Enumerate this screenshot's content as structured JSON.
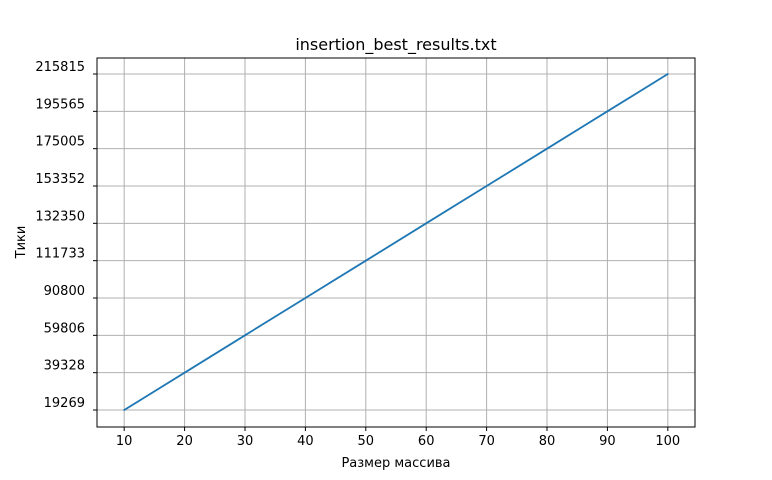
{
  "chart_data": {
    "type": "line",
    "title": "insertion_best_results.txt",
    "xlabel": "Размер массива",
    "ylabel": "Тики",
    "x": [
      10,
      20,
      30,
      40,
      50,
      60,
      70,
      80,
      90,
      100
    ],
    "x_ticks": [
      10,
      20,
      30,
      40,
      50,
      60,
      70,
      80,
      90,
      100
    ],
    "y_tick_labels": [
      "19269",
      "39328",
      "59806",
      "90800",
      "111733",
      "132350",
      "153352",
      "175005",
      "195565",
      "215815"
    ],
    "series": [
      {
        "values": [
          19269,
          39328,
          59806,
          90800,
          111733,
          132350,
          153352,
          175005,
          195565,
          215815
        ],
        "color": "#1f77b4"
      }
    ],
    "y_axis": "categorical (equally spaced tick labels)",
    "grid": true,
    "legend": "none"
  }
}
